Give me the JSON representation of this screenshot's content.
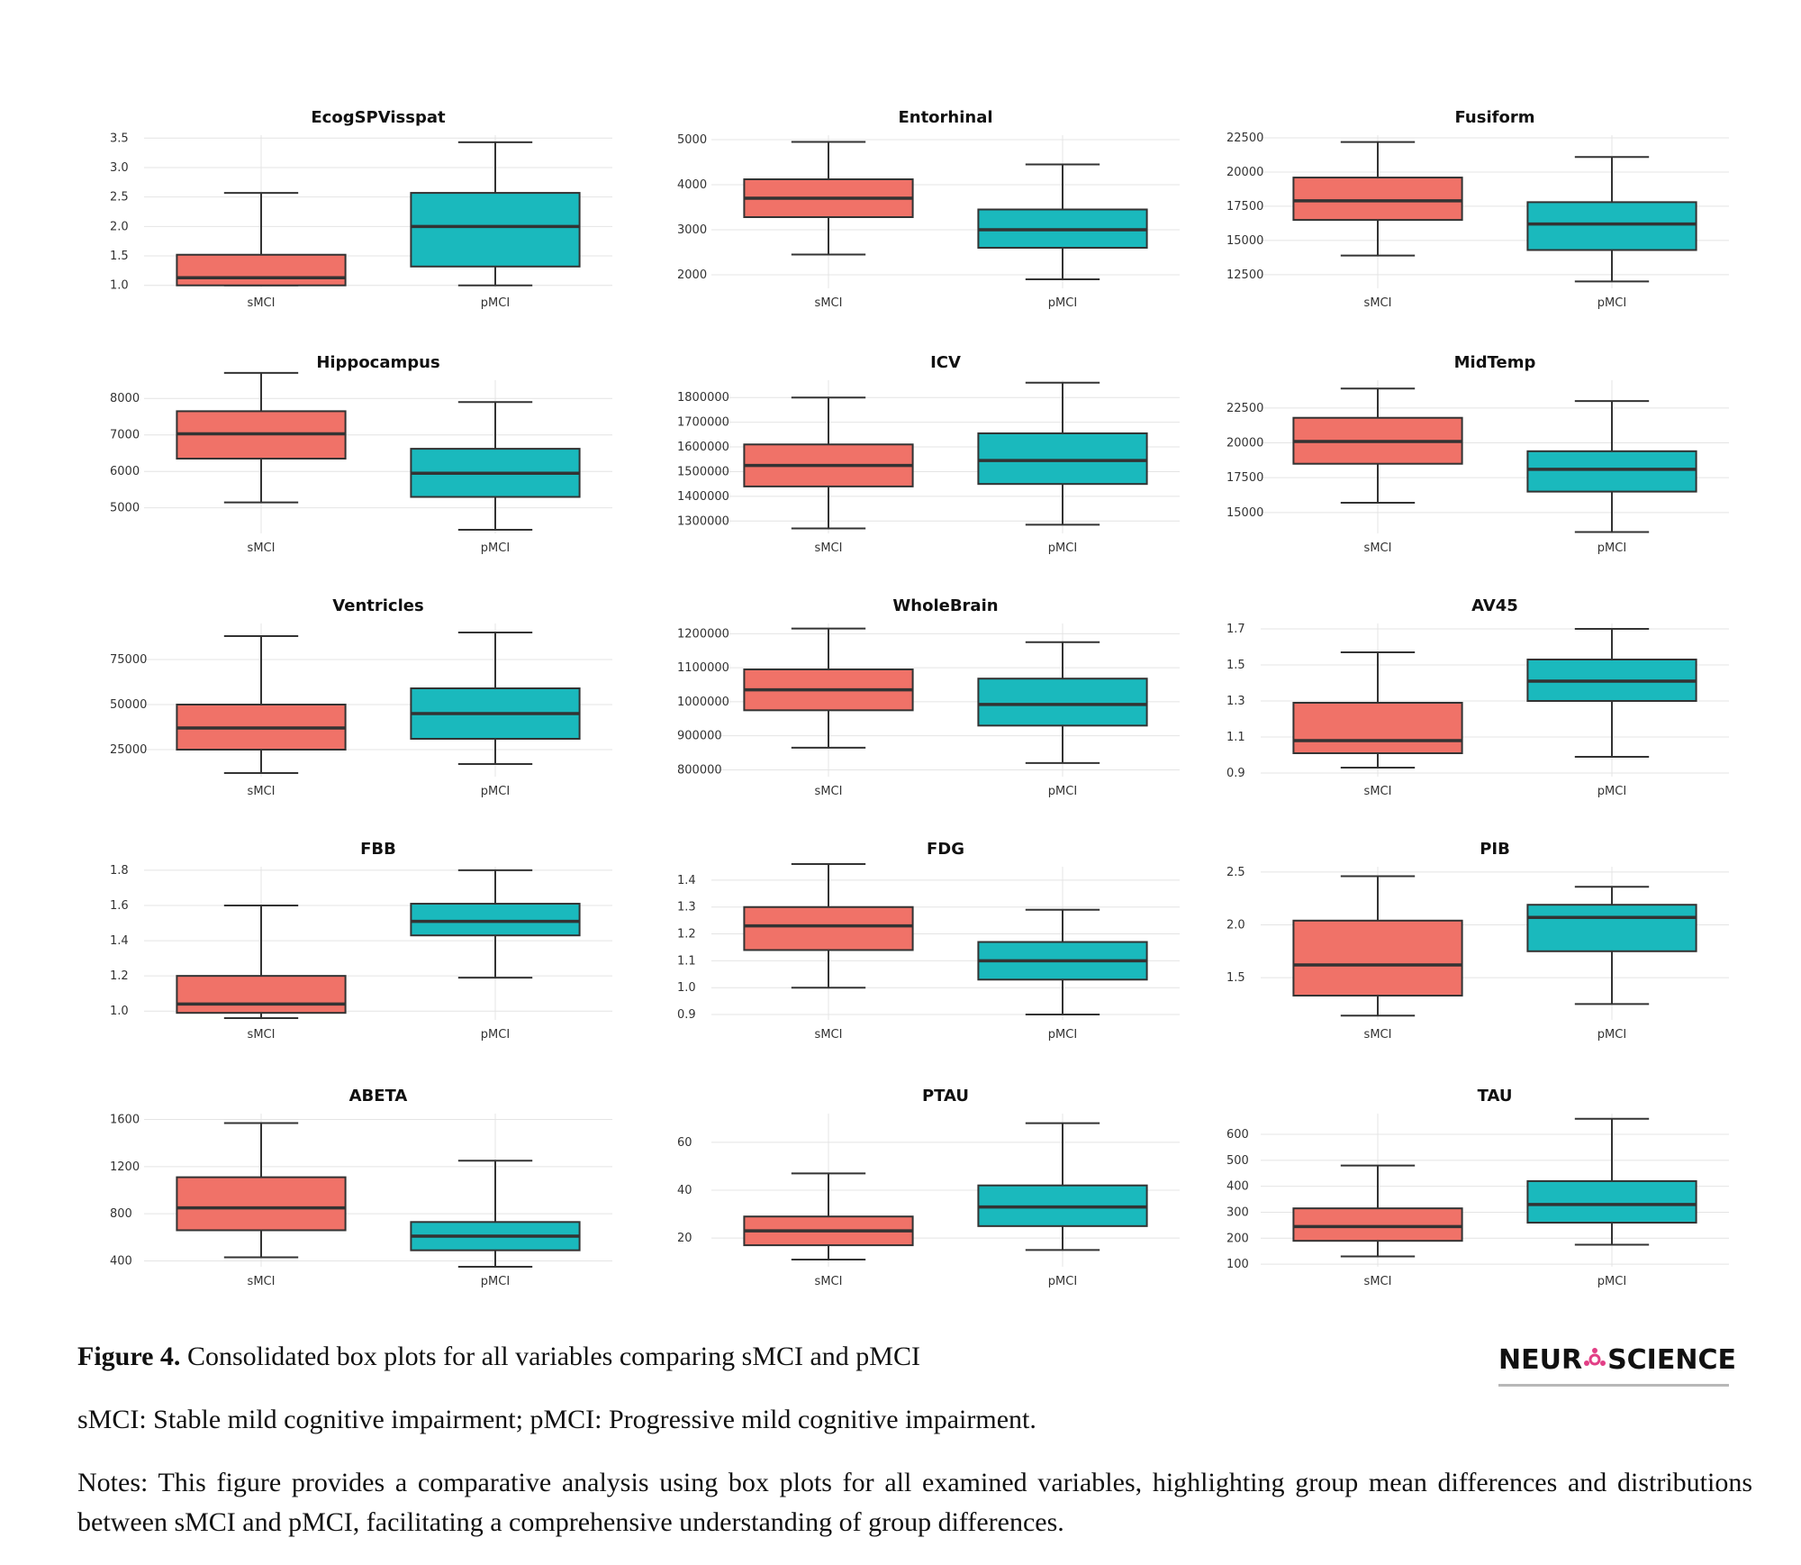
{
  "colors": {
    "smci": "#f07268",
    "pmci": "#1ab9bd",
    "stroke": "#333333",
    "grid": "#e4e4e4",
    "logo_accent": "#e23f86"
  },
  "chart_data": [
    {
      "type": "box",
      "title": "EcogSPVisspat",
      "ylim": [
        0.95,
        3.55
      ],
      "yticks": [
        "1.0",
        "1.5",
        "2.0",
        "2.5",
        "3.0",
        "3.5"
      ],
      "categories": [
        "sMCI",
        "pMCI"
      ],
      "boxes": [
        {
          "name": "sMCI",
          "min": 1.0,
          "q1": 1.0,
          "median": 1.13,
          "q3": 1.52,
          "max": 2.57
        },
        {
          "name": "pMCI",
          "min": 1.0,
          "q1": 1.32,
          "median": 2.0,
          "q3": 2.57,
          "max": 3.43
        }
      ]
    },
    {
      "type": "box",
      "title": "Entorhinal",
      "ylim": [
        1700,
        5100
      ],
      "yticks": [
        "2000",
        "3000",
        "4000",
        "5000"
      ],
      "categories": [
        "sMCI",
        "pMCI"
      ],
      "boxes": [
        {
          "name": "sMCI",
          "min": 2450,
          "q1": 3280,
          "median": 3700,
          "q3": 4120,
          "max": 4950
        },
        {
          "name": "pMCI",
          "min": 1900,
          "q1": 2600,
          "median": 3000,
          "q3": 3450,
          "max": 4450
        }
      ]
    },
    {
      "type": "box",
      "title": "Fusiform",
      "ylim": [
        11500,
        22700
      ],
      "yticks": [
        "12500",
        "15000",
        "17500",
        "20000",
        "22500"
      ],
      "categories": [
        "sMCI",
        "pMCI"
      ],
      "boxes": [
        {
          "name": "sMCI",
          "min": 13900,
          "q1": 16500,
          "median": 17900,
          "q3": 19600,
          "max": 22200
        },
        {
          "name": "pMCI",
          "min": 12000,
          "q1": 14300,
          "median": 16200,
          "q3": 17800,
          "max": 21100
        }
      ]
    },
    {
      "type": "box",
      "title": "Hippocampus",
      "ylim": [
        4300,
        8500
      ],
      "yticks": [
        "5000",
        "6000",
        "7000",
        "8000"
      ],
      "categories": [
        "sMCI",
        "pMCI"
      ],
      "boxes": [
        {
          "name": "sMCI",
          "min": 5150,
          "q1": 6350,
          "median": 7030,
          "q3": 7650,
          "max": 8700
        },
        {
          "name": "pMCI",
          "min": 4400,
          "q1": 5300,
          "median": 5950,
          "q3": 6620,
          "max": 7900
        }
      ]
    },
    {
      "type": "box",
      "title": "ICV",
      "ylim": [
        1250000,
        1870000
      ],
      "yticks": [
        "1300000",
        "1400000",
        "1500000",
        "1600000",
        "1700000",
        "1800000"
      ],
      "categories": [
        "sMCI",
        "pMCI"
      ],
      "boxes": [
        {
          "name": "sMCI",
          "min": 1270000,
          "q1": 1440000,
          "median": 1525000,
          "q3": 1610000,
          "max": 1800000
        },
        {
          "name": "pMCI",
          "min": 1285000,
          "q1": 1450000,
          "median": 1545000,
          "q3": 1655000,
          "max": 1860000
        }
      ]
    },
    {
      "type": "box",
      "title": "MidTemp",
      "ylim": [
        13500,
        24500
      ],
      "yticks": [
        "15000",
        "17500",
        "20000",
        "22500"
      ],
      "categories": [
        "sMCI",
        "pMCI"
      ],
      "boxes": [
        {
          "name": "sMCI",
          "min": 15700,
          "q1": 18500,
          "median": 20100,
          "q3": 21800,
          "max": 23900
        },
        {
          "name": "pMCI",
          "min": 13600,
          "q1": 16500,
          "median": 18100,
          "q3": 19400,
          "max": 23000
        }
      ]
    },
    {
      "type": "box",
      "title": "Ventricles",
      "ylim": [
        10000,
        95000
      ],
      "yticks": [
        "25000",
        "50000",
        "75000"
      ],
      "categories": [
        "sMCI",
        "pMCI"
      ],
      "boxes": [
        {
          "name": "sMCI",
          "min": 12000,
          "q1": 25000,
          "median": 37000,
          "q3": 50000,
          "max": 88000
        },
        {
          "name": "pMCI",
          "min": 17000,
          "q1": 31000,
          "median": 45000,
          "q3": 59000,
          "max": 90000
        }
      ]
    },
    {
      "type": "box",
      "title": "WholeBrain",
      "ylim": [
        780000,
        1230000
      ],
      "yticks": [
        "800000",
        "900000",
        "1000000",
        "1100000",
        "1200000"
      ],
      "categories": [
        "sMCI",
        "pMCI"
      ],
      "boxes": [
        {
          "name": "sMCI",
          "min": 865000,
          "q1": 975000,
          "median": 1035000,
          "q3": 1095000,
          "max": 1215000
        },
        {
          "name": "pMCI",
          "min": 820000,
          "q1": 930000,
          "median": 992000,
          "q3": 1068000,
          "max": 1175000
        }
      ]
    },
    {
      "type": "box",
      "title": "AV45",
      "ylim": [
        0.88,
        1.73
      ],
      "yticks": [
        "0.9",
        "1.1",
        "1.3",
        "1.5",
        "1.7"
      ],
      "categories": [
        "sMCI",
        "pMCI"
      ],
      "boxes": [
        {
          "name": "sMCI",
          "min": 0.93,
          "q1": 1.01,
          "median": 1.08,
          "q3": 1.29,
          "max": 1.57
        },
        {
          "name": "pMCI",
          "min": 0.99,
          "q1": 1.3,
          "median": 1.41,
          "q3": 1.53,
          "max": 1.7
        }
      ]
    },
    {
      "type": "box",
      "title": "FBB",
      "ylim": [
        0.95,
        1.82
      ],
      "yticks": [
        "1.0",
        "1.2",
        "1.4",
        "1.6",
        "1.8"
      ],
      "categories": [
        "sMCI",
        "pMCI"
      ],
      "boxes": [
        {
          "name": "sMCI",
          "min": 0.96,
          "q1": 0.99,
          "median": 1.04,
          "q3": 1.2,
          "max": 1.6
        },
        {
          "name": "pMCI",
          "min": 1.19,
          "q1": 1.43,
          "median": 1.51,
          "q3": 1.61,
          "max": 1.8
        }
      ]
    },
    {
      "type": "box",
      "title": "FDG",
      "ylim": [
        0.88,
        1.45
      ],
      "yticks": [
        "0.9",
        "1.0",
        "1.1",
        "1.2",
        "1.3",
        "1.4"
      ],
      "categories": [
        "sMCI",
        "pMCI"
      ],
      "boxes": [
        {
          "name": "sMCI",
          "min": 1.0,
          "q1": 1.14,
          "median": 1.23,
          "q3": 1.3,
          "max": 1.46
        },
        {
          "name": "pMCI",
          "min": 0.9,
          "q1": 1.03,
          "median": 1.1,
          "q3": 1.17,
          "max": 1.29
        }
      ]
    },
    {
      "type": "box",
      "title": "PIB",
      "ylim": [
        1.1,
        2.55
      ],
      "yticks": [
        "1.5",
        "2.0",
        "2.5"
      ],
      "categories": [
        "sMCI",
        "pMCI"
      ],
      "boxes": [
        {
          "name": "sMCI",
          "min": 1.14,
          "q1": 1.33,
          "median": 1.62,
          "q3": 2.04,
          "max": 2.46
        },
        {
          "name": "pMCI",
          "min": 1.25,
          "q1": 1.75,
          "median": 2.07,
          "q3": 2.19,
          "max": 2.36
        }
      ]
    },
    {
      "type": "box",
      "title": "ABETA",
      "ylim": [
        350,
        1650
      ],
      "yticks": [
        "400",
        "800",
        "1200",
        "1600"
      ],
      "categories": [
        "sMCI",
        "pMCI"
      ],
      "boxes": [
        {
          "name": "sMCI",
          "min": 430,
          "q1": 660,
          "median": 850,
          "q3": 1110,
          "max": 1570
        },
        {
          "name": "pMCI",
          "min": 350,
          "q1": 490,
          "median": 610,
          "q3": 730,
          "max": 1250
        }
      ]
    },
    {
      "type": "box",
      "title": "PTAU",
      "ylim": [
        8,
        72
      ],
      "yticks": [
        "20",
        "40",
        "60"
      ],
      "categories": [
        "sMCI",
        "pMCI"
      ],
      "boxes": [
        {
          "name": "sMCI",
          "min": 11,
          "q1": 17,
          "median": 23,
          "q3": 29,
          "max": 47
        },
        {
          "name": "pMCI",
          "min": 15,
          "q1": 25,
          "median": 33,
          "q3": 42,
          "max": 68
        }
      ]
    },
    {
      "type": "box",
      "title": "TAU",
      "ylim": [
        90,
        680
      ],
      "yticks": [
        "100",
        "200",
        "300",
        "400",
        "500",
        "600"
      ],
      "categories": [
        "sMCI",
        "pMCI"
      ],
      "boxes": [
        {
          "name": "sMCI",
          "min": 130,
          "q1": 190,
          "median": 245,
          "q3": 315,
          "max": 480
        },
        {
          "name": "pMCI",
          "min": 175,
          "q1": 260,
          "median": 330,
          "q3": 420,
          "max": 660
        }
      ]
    }
  ],
  "caption": {
    "figure_label": "Figure 4.",
    "figure_text": " Consolidated box plots for all variables comparing sMCI and pMCI",
    "abbreviations": "sMCI: Stable mild cognitive impairment; pMCI: Progressive mild cognitive impairment.",
    "notes": "Notes: This figure provides a comparative analysis using box plots for all examined variables, highlighting group mean differences and distributions between sMCI and pMCI, facilitating a comprehensive understanding of group differences."
  },
  "logo": {
    "part1": "NEUR",
    "part2": "SCIENCE"
  }
}
